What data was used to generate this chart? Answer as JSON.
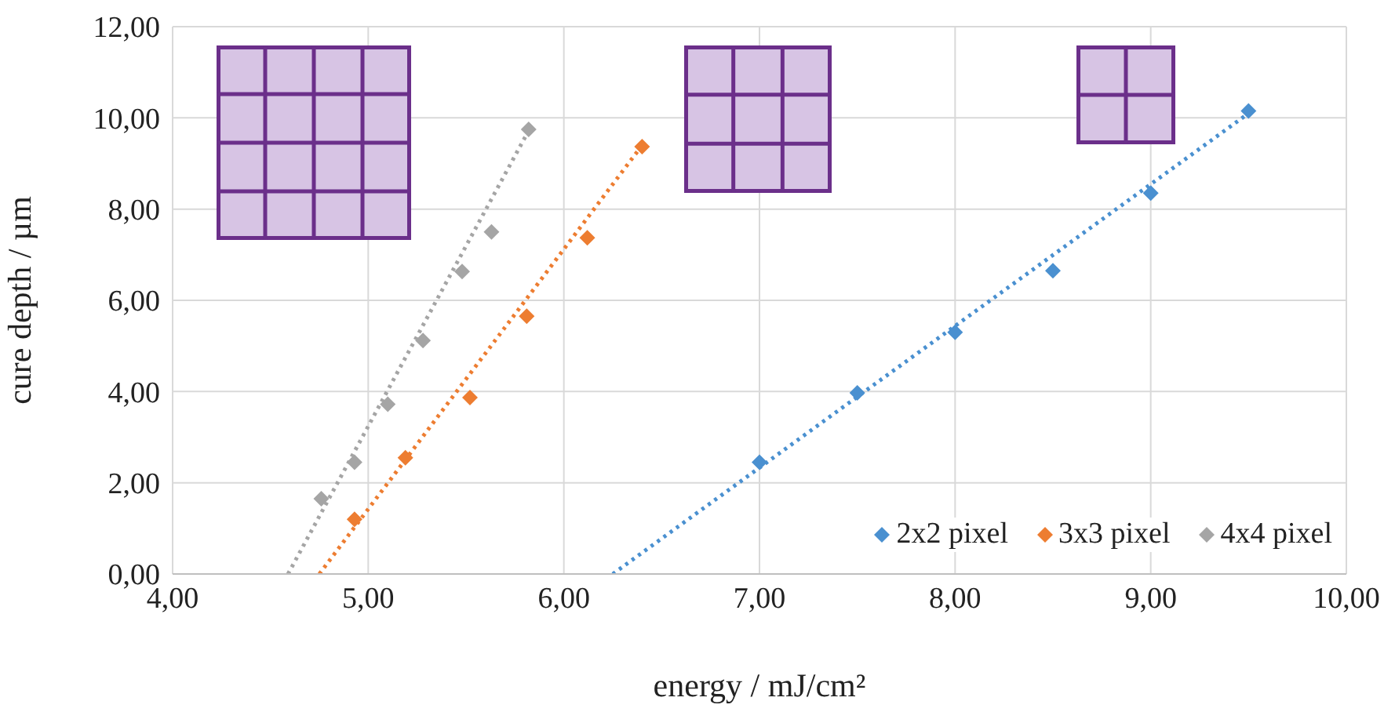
{
  "chart_data": {
    "type": "scatter",
    "xlabel": "energy / mJ/cm²",
    "ylabel": "cure depth / µm",
    "xlim": [
      4,
      10
    ],
    "xticks": [
      {
        "value": 4,
        "label": "4,00"
      },
      {
        "value": 5,
        "label": "5,00"
      },
      {
        "value": 6,
        "label": "6,00"
      },
      {
        "value": 7,
        "label": "7,00"
      },
      {
        "value": 8,
        "label": "8,00"
      },
      {
        "value": 9,
        "label": "9,00"
      },
      {
        "value": 10,
        "label": "10,00"
      }
    ],
    "ylim": [
      0,
      12
    ],
    "yticks": [
      {
        "value": 0,
        "label": "0,00"
      },
      {
        "value": 2,
        "label": "2,00"
      },
      {
        "value": 4,
        "label": "4,00"
      },
      {
        "value": 6,
        "label": "6,00"
      },
      {
        "value": 8,
        "label": "8,00"
      },
      {
        "value": 10,
        "label": "10,00"
      },
      {
        "value": 12,
        "label": "12,00"
      }
    ],
    "grid": true,
    "legend": "bottom right",
    "marker": "diamond",
    "series": [
      {
        "name": "2x2 pixel",
        "color": "#4a90d0",
        "x": [
          7.0,
          7.5,
          8.0,
          8.5,
          9.0,
          9.5
        ],
        "values": [
          2.45,
          3.97,
          5.3,
          6.65,
          8.35,
          10.15
        ]
      },
      {
        "name": "3x3 pixel",
        "color": "#ed7d31",
        "x": [
          4.93,
          5.19,
          5.52,
          5.81,
          6.12,
          6.4
        ],
        "values": [
          1.2,
          2.55,
          3.87,
          5.65,
          7.37,
          9.37
        ]
      },
      {
        "name": "4x4 pixel",
        "color": "#a5a5a5",
        "x": [
          4.76,
          4.93,
          5.1,
          5.28,
          5.48,
          5.63,
          5.82
        ],
        "values": [
          1.65,
          2.45,
          3.72,
          5.12,
          6.63,
          7.5,
          9.75
        ]
      },
      {
        "type": "line",
        "color": "#4a90d0",
        "marker": "none",
        "line_style": "dotted",
        "x": [
          6.25,
          9.5
        ],
        "values": [
          0,
          10.1
        ]
      },
      {
        "type": "line",
        "color": "#ed7d31",
        "marker": "none",
        "line_style": "dotted",
        "x": [
          4.75,
          6.4
        ],
        "values": [
          0,
          9.4
        ]
      },
      {
        "type": "line",
        "color": "#a5a5a5",
        "marker": "none",
        "line_style": "dotted",
        "x": [
          4.59,
          5.83
        ],
        "values": [
          0,
          9.8
        ]
      }
    ]
  }
}
